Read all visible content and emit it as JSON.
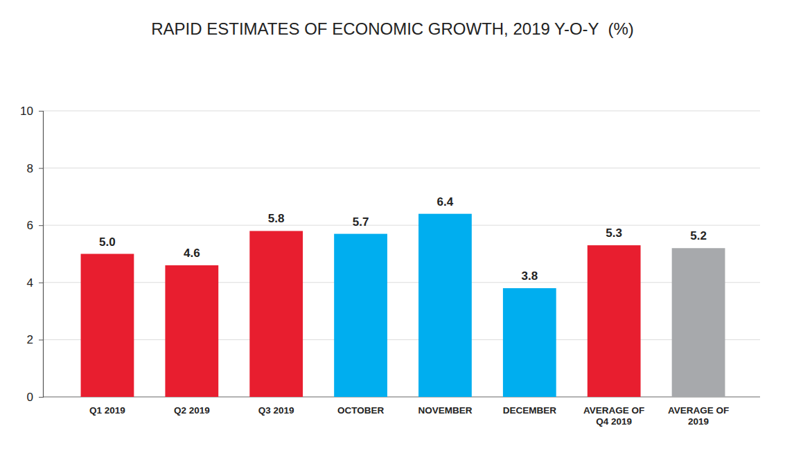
{
  "chart_data": {
    "type": "bar",
    "title": "RAPID ESTIMATES OF ECONOMIC GROWTH, 2019 Y-O-Y  (%)",
    "categories": [
      "Q1 2019",
      "Q2 2019",
      "Q3 2019",
      "OCTOBER",
      "NOVEMBER",
      "DECEMBER",
      "AVERAGE OF Q4 2019",
      "AVERAGE OF 2019"
    ],
    "values": [
      5.0,
      4.6,
      5.8,
      5.7,
      6.4,
      3.8,
      5.3,
      5.2
    ],
    "value_labels": [
      "5.0",
      "4.6",
      "5.8",
      "5.7",
      "6.4",
      "3.8",
      "5.3",
      "5.2"
    ],
    "colors": [
      "#e81e2f",
      "#e81e2f",
      "#e81e2f",
      "#00aeef",
      "#00aeef",
      "#00aeef",
      "#e81e2f",
      "#a7a9ac"
    ],
    "ylim": [
      0,
      10
    ],
    "yticks": [
      0,
      2,
      4,
      6,
      8,
      10
    ],
    "grid": true,
    "data_labels": true
  }
}
